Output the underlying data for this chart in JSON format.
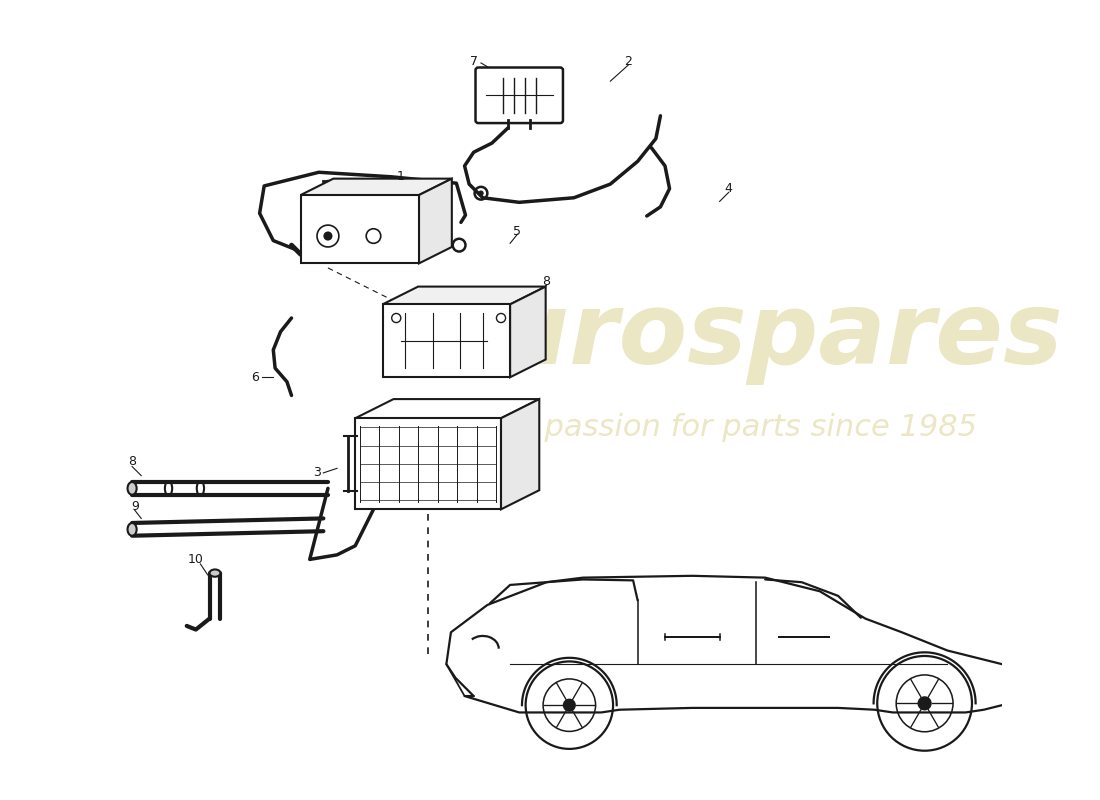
{
  "bg_color": "#ffffff",
  "line_color": "#1a1a1a",
  "watermark_color": "#d4c87a",
  "watermark_text1": "eurospares",
  "watermark_text2": "a passion for parts since 1985",
  "fig_w": 11.0,
  "fig_h": 8.0,
  "dpi": 100
}
